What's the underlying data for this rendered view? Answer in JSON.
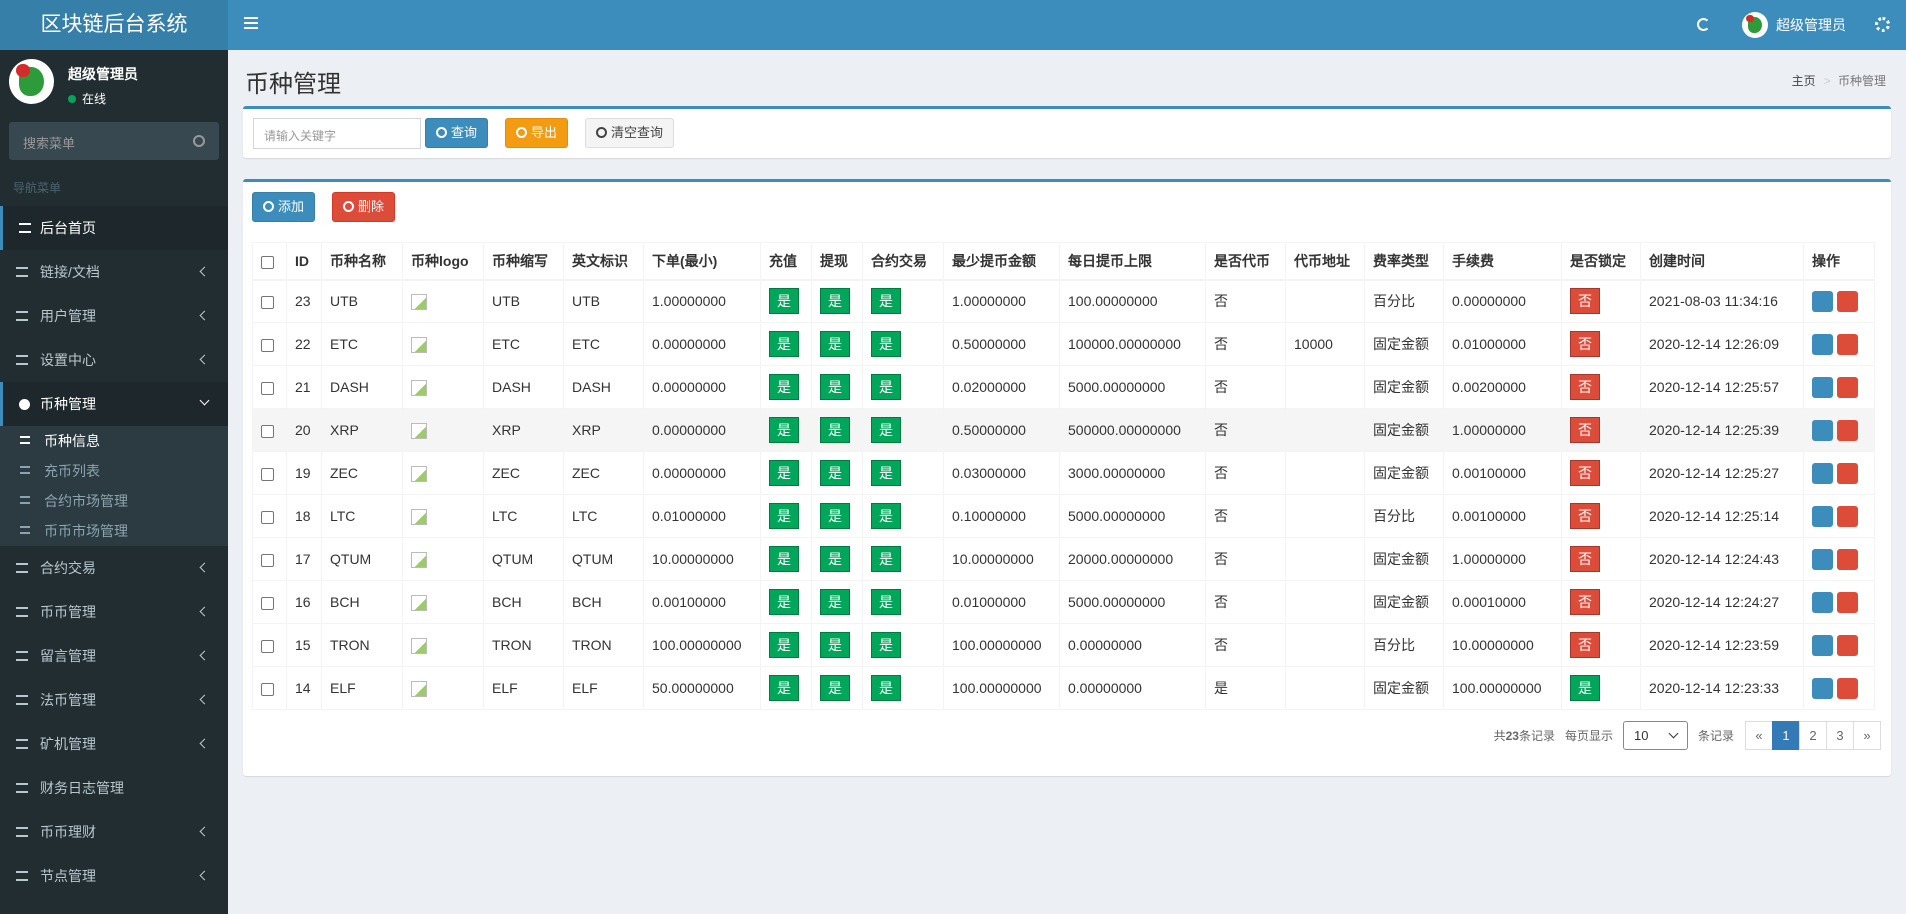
{
  "header": {
    "brand": "区块链后台系统",
    "user": "超级管理员"
  },
  "sidebar": {
    "user_name": "超级管理员",
    "status": "在线",
    "search_placeholder": "搜索菜单",
    "nav_label": "导航菜单",
    "menu": [
      {
        "label": "后台首页",
        "icon": "home"
      },
      {
        "label": "链接/文档",
        "icon": "pen",
        "arrow": true
      },
      {
        "label": "用户管理",
        "icon": "users",
        "arrow": true
      },
      {
        "label": "设置中心",
        "icon": "gears",
        "arrow": true
      },
      {
        "label": "币种管理",
        "icon": "circle",
        "open": true,
        "children": [
          "币种信息",
          "充币列表",
          "合约市场管理",
          "币币市场管理"
        ]
      },
      {
        "label": "合约交易",
        "icon": "list",
        "arrow": true
      },
      {
        "label": "币币管理",
        "icon": "list",
        "arrow": true
      },
      {
        "label": "留言管理",
        "icon": "bars",
        "arrow": true
      },
      {
        "label": "法币管理",
        "icon": "list",
        "arrow": true
      },
      {
        "label": "矿机管理",
        "icon": "list",
        "arrow": true
      },
      {
        "label": "财务日志管理",
        "icon": "list"
      },
      {
        "label": "币币理财",
        "icon": "list",
        "arrow": true
      },
      {
        "label": "节点管理",
        "icon": "list",
        "arrow": true
      }
    ]
  },
  "page": {
    "title": "币种管理",
    "breadcrumb": [
      "主页",
      "币种管理"
    ]
  },
  "toolbar": {
    "search_placeholder": "请输入关键字",
    "search": "查询",
    "export": "导出",
    "clear": "清空查询"
  },
  "actions": {
    "add": "添加",
    "delete": "删除"
  },
  "badge_colors": {
    "是": "#00a65a",
    "否": "#dd4b39"
  },
  "table": {
    "columns": [
      "ID",
      "币种名称",
      "币种logo",
      "币种缩写",
      "英文标识",
      "下单(最小)",
      "充值",
      "提现",
      "合约交易",
      "最少提币金额",
      "每日提币上限",
      "是否代币",
      "代币地址",
      "费率类型",
      "手续费",
      "是否锁定",
      "创建时间",
      "操作"
    ],
    "rows": [
      [
        23,
        "UTB",
        null,
        "UTB",
        "UTB",
        "1.00000000",
        "是",
        "是",
        "是",
        "1.00000000",
        "100.00000000",
        "否",
        null,
        "百分比",
        "0.00000000",
        "否",
        "2021-08-03 11:34:16"
      ],
      [
        22,
        "ETC",
        null,
        "ETC",
        "ETC",
        "0.00000000",
        "是",
        "是",
        "是",
        "0.50000000",
        "100000.00000000",
        "否",
        "10000",
        "固定金额",
        "0.01000000",
        "否",
        "2020-12-14 12:26:09"
      ],
      [
        21,
        "DASH",
        null,
        "DASH",
        "DASH",
        "0.00000000",
        "是",
        "是",
        "是",
        "0.02000000",
        "5000.00000000",
        "否",
        null,
        "固定金额",
        "0.00200000",
        "否",
        "2020-12-14 12:25:57"
      ],
      [
        20,
        "XRP",
        null,
        "XRP",
        "XRP",
        "0.00000000",
        "是",
        "是",
        "是",
        "0.50000000",
        "500000.00000000",
        "否",
        null,
        "固定金额",
        "1.00000000",
        "否",
        "2020-12-14 12:25:39"
      ],
      [
        19,
        "ZEC",
        null,
        "ZEC",
        "ZEC",
        "0.00000000",
        "是",
        "是",
        "是",
        "0.03000000",
        "3000.00000000",
        "否",
        null,
        "固定金额",
        "0.00100000",
        "否",
        "2020-12-14 12:25:27"
      ],
      [
        18,
        "LTC",
        null,
        "LTC",
        "LTC",
        "0.01000000",
        "是",
        "是",
        "是",
        "0.10000000",
        "5000.00000000",
        "否",
        null,
        "百分比",
        "0.00100000",
        "否",
        "2020-12-14 12:25:14"
      ],
      [
        17,
        "QTUM",
        null,
        "QTUM",
        "QTUM",
        "10.00000000",
        "是",
        "是",
        "是",
        "10.00000000",
        "20000.00000000",
        "否",
        null,
        "固定金额",
        "1.00000000",
        "否",
        "2020-12-14 12:24:43"
      ],
      [
        16,
        "BCH",
        null,
        "BCH",
        "BCH",
        "0.00100000",
        "是",
        "是",
        "是",
        "0.01000000",
        "5000.00000000",
        "否",
        null,
        "固定金额",
        "0.00010000",
        "否",
        "2020-12-14 12:24:27"
      ],
      [
        15,
        "TRON",
        null,
        "TRON",
        "TRON",
        "100.00000000",
        "是",
        "是",
        "是",
        "100.00000000",
        "0.00000000",
        "否",
        null,
        "百分比",
        "10.00000000",
        "否",
        "2020-12-14 12:23:59"
      ],
      [
        14,
        "ELF",
        null,
        "ELF",
        "ELF",
        "50.00000000",
        "是",
        "是",
        "是",
        "100.00000000",
        "0.00000000",
        "是",
        null,
        "固定金额",
        "100.00000000",
        "是",
        "2020-12-14 12:23:33"
      ]
    ]
  },
  "pagination": {
    "total_prefix": "共",
    "total": 23,
    "total_suffix": "条记录",
    "per_page_label": "每页显示",
    "per_page": 10,
    "per_page_suffix": "条记录",
    "prev": "«",
    "pages": [
      1,
      2,
      3
    ],
    "next": "»",
    "current": 1
  }
}
